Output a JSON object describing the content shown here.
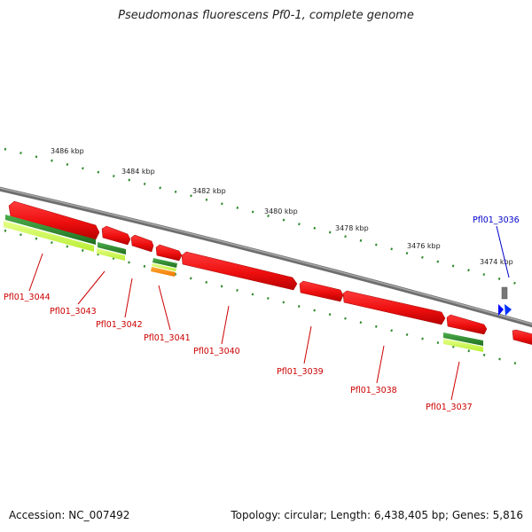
{
  "title": "Pseudomonas fluorescens Pf0-1, complete genome",
  "footer": {
    "accession": "Accession: NC_007492",
    "summary": "Topology: circular; Length: 6,438,405 bp; Genes: 5,816"
  },
  "colors": {
    "gene_forward": "#ee1111",
    "gene_label": "#cc0000",
    "highlight_label": "#0000cc",
    "backbone": "#808080",
    "tick_dots": "#2f8a2f",
    "green_dark": "#2e8b2e",
    "green_light": "#ccff55",
    "orange": "#ff8800",
    "blue_marker": "#0000ff"
  },
  "scale_labels": [
    "3486 kbp",
    "3484 kbp",
    "3482 kbp",
    "3480 kbp",
    "3478 kbp",
    "3476 kbp",
    "3474 kbp"
  ],
  "genes": [
    "Pfl01_3044",
    "Pfl01_3043",
    "Pfl01_3042",
    "Pfl01_3041",
    "Pfl01_3040",
    "Pfl01_3039",
    "Pfl01_3038",
    "Pfl01_3037"
  ],
  "highlighted_gene": "Pfl01_3036"
}
